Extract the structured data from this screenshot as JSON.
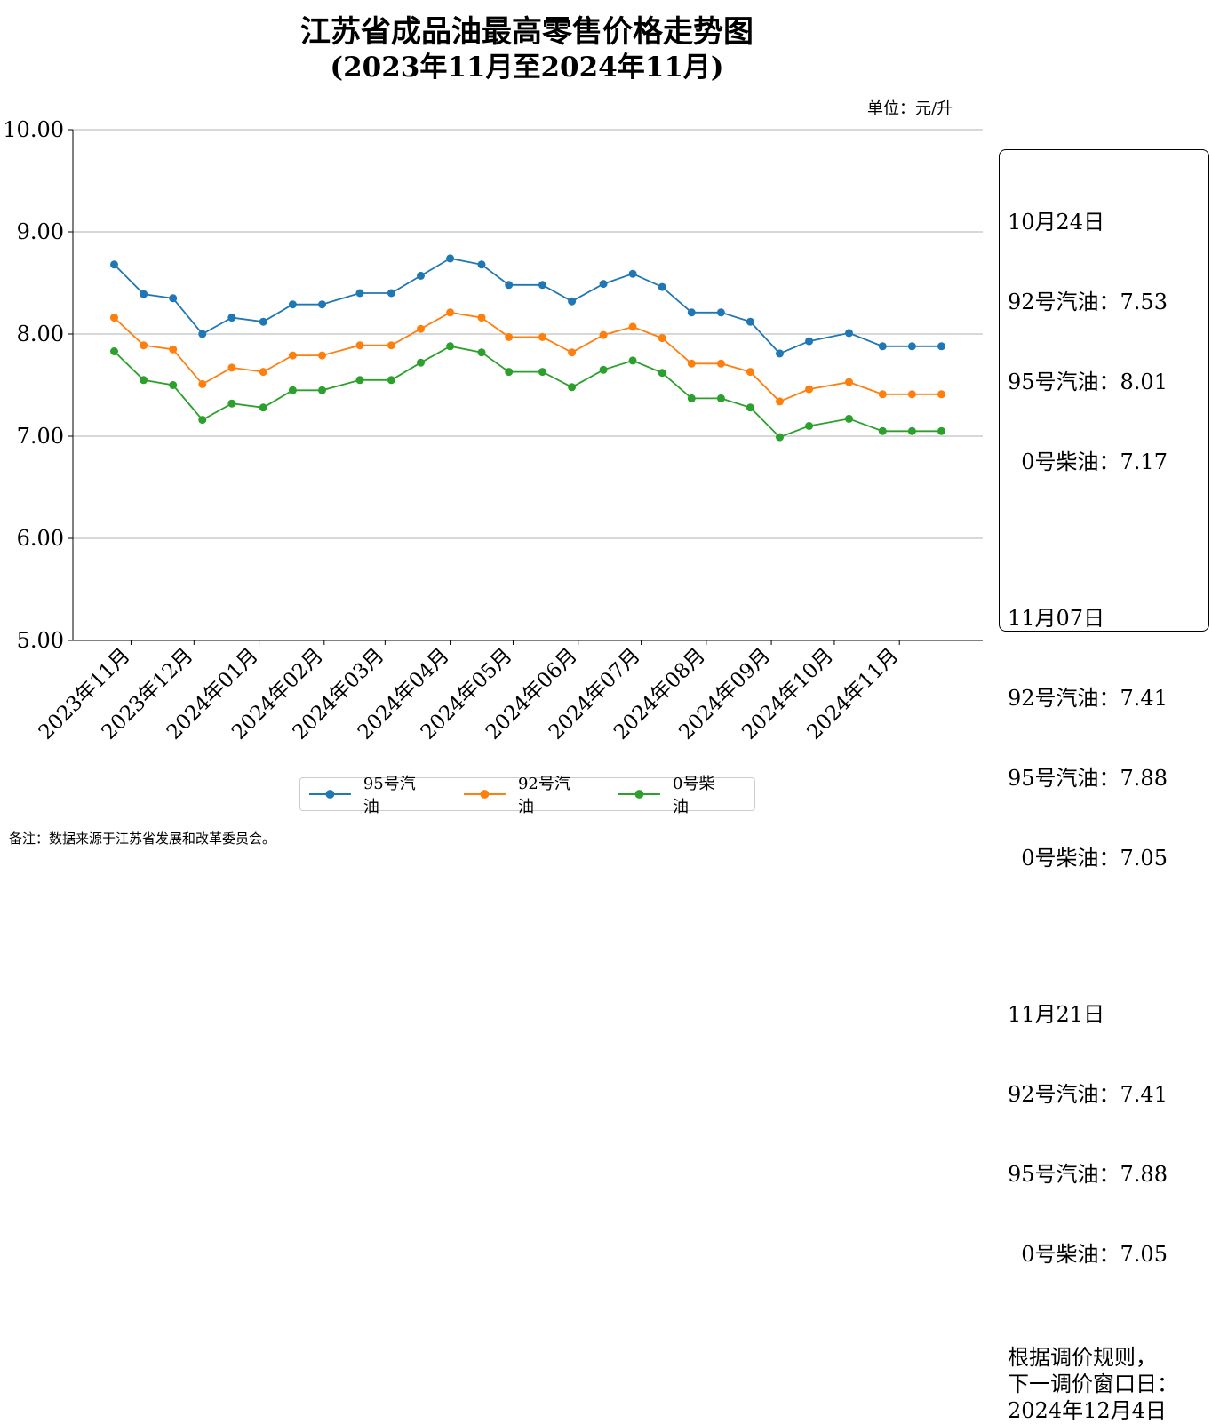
{
  "chart_data": {
    "type": "line",
    "title": "江苏省成品油最高零售价格走势图",
    "subtitle": "(2023年11月至2024年11月)",
    "unit_label": "单位：元/升",
    "ylim": [
      5.0,
      10.0
    ],
    "yticks": [
      "5.00",
      "6.00",
      "7.00",
      "8.00",
      "9.00",
      "10.00"
    ],
    "ytick_values": [
      5,
      6,
      7,
      8,
      9,
      10
    ],
    "xtick_labels": [
      "2023年11月",
      "2023年12月",
      "2024年01月",
      "2024年02月",
      "2024年03月",
      "2024年04月",
      "2024年05月",
      "2024年06月",
      "2024年07月",
      "2024年08月",
      "2024年09月",
      "2024年10月",
      "2024年11月"
    ],
    "xtick_dates": [
      "2023-11-01",
      "2023-12-01",
      "2024-01-01",
      "2024-02-01",
      "2024-03-01",
      "2024-04-01",
      "2024-05-01",
      "2024-06-01",
      "2024-07-01",
      "2024-08-01",
      "2024-09-01",
      "2024-10-01",
      "2024-11-01"
    ],
    "x": [
      "2023-10-24",
      "2023-11-07",
      "2023-11-21",
      "2023-12-05",
      "2023-12-19",
      "2024-01-03",
      "2024-01-17",
      "2024-01-31",
      "2024-02-18",
      "2024-03-04",
      "2024-03-18",
      "2024-04-01",
      "2024-04-16",
      "2024-04-29",
      "2024-05-15",
      "2024-05-29",
      "2024-06-13",
      "2024-06-27",
      "2024-07-11",
      "2024-07-25",
      "2024-08-08",
      "2024-08-22",
      "2024-09-05",
      "2024-09-19",
      "2024-10-08",
      "2024-10-24",
      "2024-11-07",
      "2024-11-21"
    ],
    "series": [
      {
        "name": "95号汽油",
        "color": "#1f77b4",
        "values": [
          8.68,
          8.39,
          8.35,
          8.0,
          8.16,
          8.12,
          8.29,
          8.29,
          8.4,
          8.4,
          8.57,
          8.74,
          8.68,
          8.48,
          8.48,
          8.32,
          8.49,
          8.59,
          8.46,
          8.21,
          8.21,
          8.12,
          7.81,
          7.93,
          8.01,
          7.88,
          7.88,
          7.88
        ]
      },
      {
        "name": "92号汽油",
        "color": "#ff7f0e",
        "values": [
          8.16,
          7.89,
          7.85,
          7.51,
          7.67,
          7.63,
          7.79,
          7.79,
          7.89,
          7.89,
          8.05,
          8.21,
          8.16,
          7.97,
          7.97,
          7.82,
          7.99,
          8.07,
          7.96,
          7.71,
          7.71,
          7.63,
          7.34,
          7.46,
          7.53,
          7.41,
          7.41,
          7.41
        ]
      },
      {
        "name": "0号柴油",
        "color": "#2ca02c",
        "values": [
          7.83,
          7.55,
          7.5,
          7.16,
          7.32,
          7.28,
          7.45,
          7.45,
          7.55,
          7.55,
          7.72,
          7.88,
          7.82,
          7.63,
          7.63,
          7.48,
          7.65,
          7.74,
          7.62,
          7.37,
          7.37,
          7.28,
          6.99,
          7.1,
          7.17,
          7.05,
          7.05,
          7.05
        ]
      }
    ],
    "grid": "y",
    "legend_position": "bottom"
  },
  "infobox": {
    "groups": [
      {
        "date": "10月24日",
        "lines": [
          "92号汽油：7.53",
          "95号汽油：8.01",
          "  0号柴油：7.17"
        ]
      },
      {
        "date": "11月07日",
        "lines": [
          "92号汽油：7.41",
          "95号汽油：7.88",
          "  0号柴油：7.05"
        ]
      },
      {
        "date": "11月21日",
        "lines": [
          "92号汽油：7.41",
          "95号汽油：7.88",
          "  0号柴油：7.05"
        ]
      }
    ],
    "rule_lines": [
      "根据调价规则，",
      "下一调价窗口日：",
      "2024年12月4日"
    ]
  },
  "footnote": "备注：数据来源于江苏省发展和改革委员会。"
}
